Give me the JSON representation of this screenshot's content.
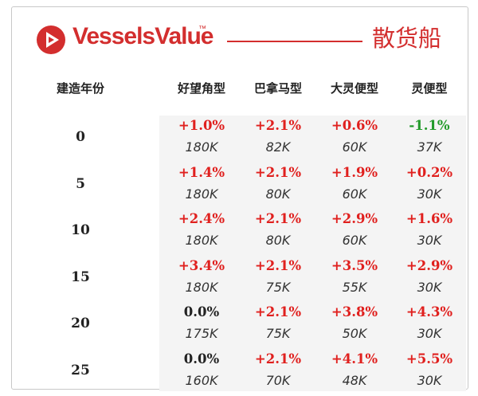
{
  "header": {
    "brand": "VesselsValue",
    "trademark": "™",
    "segment": "散货船",
    "accent_color": "#d32e2e"
  },
  "table": {
    "age_header": "建造年份",
    "columns": [
      "好望角型",
      "巴拿马型",
      "大灵便型",
      "灵便型"
    ],
    "rows": [
      {
        "age": "0",
        "cells": [
          {
            "pct": "+1.0%",
            "trend": "up",
            "dwt": "180K"
          },
          {
            "pct": "+2.1%",
            "trend": "up",
            "dwt": "82K"
          },
          {
            "pct": "+0.6%",
            "trend": "up",
            "dwt": "60K"
          },
          {
            "pct": "-1.1%",
            "trend": "down",
            "dwt": "37K"
          }
        ]
      },
      {
        "age": "5",
        "cells": [
          {
            "pct": "+1.4%",
            "trend": "up",
            "dwt": "180K"
          },
          {
            "pct": "+2.1%",
            "trend": "up",
            "dwt": "80K"
          },
          {
            "pct": "+1.9%",
            "trend": "up",
            "dwt": "60K"
          },
          {
            "pct": "+0.2%",
            "trend": "up",
            "dwt": "30K"
          }
        ]
      },
      {
        "age": "10",
        "cells": [
          {
            "pct": "+2.4%",
            "trend": "up",
            "dwt": "180K"
          },
          {
            "pct": "+2.1%",
            "trend": "up",
            "dwt": "80K"
          },
          {
            "pct": "+2.9%",
            "trend": "up",
            "dwt": "60K"
          },
          {
            "pct": "+1.6%",
            "trend": "up",
            "dwt": "30K"
          }
        ]
      },
      {
        "age": "15",
        "cells": [
          {
            "pct": "+3.4%",
            "trend": "up",
            "dwt": "180K"
          },
          {
            "pct": "+2.1%",
            "trend": "up",
            "dwt": "75K"
          },
          {
            "pct": "+3.5%",
            "trend": "up",
            "dwt": "55K"
          },
          {
            "pct": "+2.9%",
            "trend": "up",
            "dwt": "30K"
          }
        ]
      },
      {
        "age": "20",
        "cells": [
          {
            "pct": "0.0%",
            "trend": "flat",
            "dwt": "175K"
          },
          {
            "pct": "+2.1%",
            "trend": "up",
            "dwt": "75K"
          },
          {
            "pct": "+3.8%",
            "trend": "up",
            "dwt": "50K"
          },
          {
            "pct": "+4.3%",
            "trend": "up",
            "dwt": "30K"
          }
        ]
      },
      {
        "age": "25",
        "cells": [
          {
            "pct": "0.0%",
            "trend": "flat",
            "dwt": "160K"
          },
          {
            "pct": "+2.1%",
            "trend": "up",
            "dwt": "70K"
          },
          {
            "pct": "+4.1%",
            "trend": "up",
            "dwt": "48K"
          },
          {
            "pct": "+5.5%",
            "trend": "up",
            "dwt": "30K"
          }
        ]
      }
    ]
  }
}
